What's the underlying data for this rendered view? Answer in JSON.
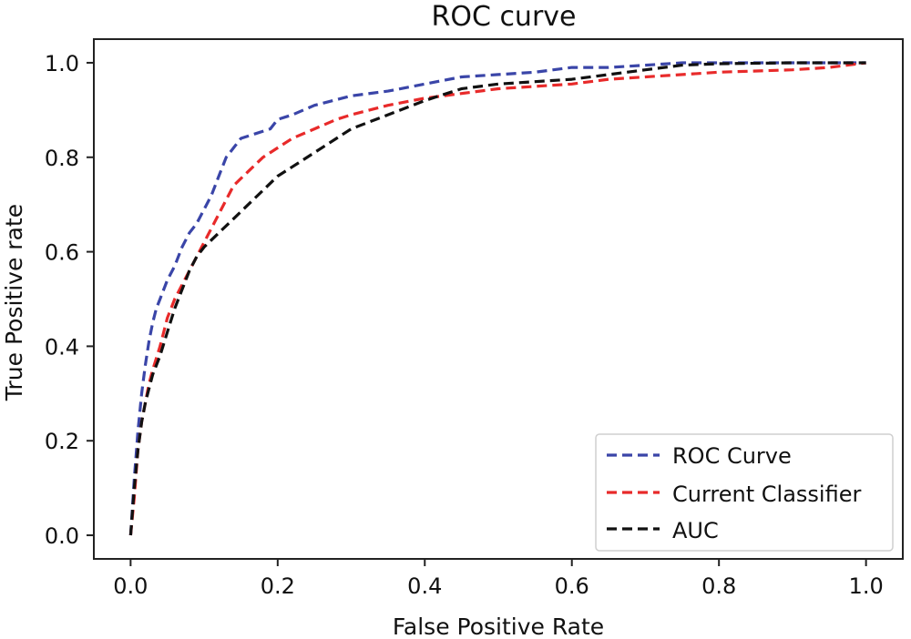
{
  "chart_data": {
    "type": "line",
    "title": "ROC curve",
    "xlabel": "False Positive Rate",
    "ylabel": "True Positive rate",
    "xlim": [
      -0.05,
      1.05
    ],
    "ylim": [
      -0.05,
      1.05
    ],
    "xticks": [
      0.0,
      0.2,
      0.4,
      0.6,
      0.8,
      1.0
    ],
    "xtick_labels": [
      "0.0",
      "0.2",
      "0.4",
      "0.6",
      "0.8",
      "1.0"
    ],
    "yticks": [
      0.0,
      0.2,
      0.4,
      0.6,
      0.8,
      1.0
    ],
    "ytick_labels": [
      "0.0",
      "0.2",
      "0.4",
      "0.6",
      "0.8",
      "1.0"
    ],
    "grid": false,
    "legend_position": "bottom-right",
    "series": [
      {
        "name": "ROC Curve",
        "color": "#3a45a8",
        "x": [
          0.0,
          0.005,
          0.01,
          0.015,
          0.02,
          0.025,
          0.03,
          0.035,
          0.04,
          0.05,
          0.06,
          0.07,
          0.08,
          0.09,
          0.1,
          0.11,
          0.12,
          0.13,
          0.14,
          0.15,
          0.17,
          0.19,
          0.2,
          0.22,
          0.25,
          0.3,
          0.35,
          0.4,
          0.45,
          0.5,
          0.55,
          0.6,
          0.65,
          0.7,
          0.75,
          0.8,
          0.9,
          1.0
        ],
        "y": [
          0.0,
          0.12,
          0.22,
          0.3,
          0.36,
          0.41,
          0.45,
          0.48,
          0.5,
          0.54,
          0.57,
          0.61,
          0.64,
          0.66,
          0.69,
          0.72,
          0.76,
          0.8,
          0.82,
          0.84,
          0.85,
          0.86,
          0.88,
          0.89,
          0.91,
          0.93,
          0.94,
          0.955,
          0.97,
          0.975,
          0.98,
          0.99,
          0.99,
          0.995,
          1.0,
          1.0,
          1.0,
          1.0
        ]
      },
      {
        "name": "Current Classifier",
        "color": "#e82a2a",
        "x": [
          0.0,
          0.005,
          0.01,
          0.015,
          0.02,
          0.025,
          0.03,
          0.04,
          0.05,
          0.06,
          0.07,
          0.08,
          0.09,
          0.1,
          0.12,
          0.14,
          0.16,
          0.18,
          0.2,
          0.22,
          0.25,
          0.28,
          0.3,
          0.35,
          0.4,
          0.45,
          0.5,
          0.55,
          0.6,
          0.65,
          0.7,
          0.8,
          0.9,
          0.95,
          1.0
        ],
        "y": [
          0.0,
          0.08,
          0.18,
          0.24,
          0.28,
          0.32,
          0.35,
          0.4,
          0.46,
          0.5,
          0.53,
          0.56,
          0.59,
          0.62,
          0.68,
          0.74,
          0.77,
          0.8,
          0.82,
          0.84,
          0.86,
          0.88,
          0.89,
          0.91,
          0.925,
          0.935,
          0.945,
          0.95,
          0.955,
          0.965,
          0.97,
          0.98,
          0.985,
          0.99,
          1.0
        ]
      },
      {
        "name": "AUC",
        "color": "#111111",
        "x": [
          0.0,
          0.005,
          0.01,
          0.015,
          0.02,
          0.025,
          0.03,
          0.04,
          0.05,
          0.06,
          0.07,
          0.08,
          0.09,
          0.1,
          0.12,
          0.14,
          0.16,
          0.18,
          0.2,
          0.22,
          0.25,
          0.28,
          0.3,
          0.35,
          0.4,
          0.45,
          0.5,
          0.55,
          0.6,
          0.65,
          0.7,
          0.75,
          0.8,
          0.9,
          1.0
        ],
        "y": [
          0.0,
          0.1,
          0.18,
          0.24,
          0.28,
          0.31,
          0.34,
          0.38,
          0.43,
          0.48,
          0.52,
          0.56,
          0.59,
          0.61,
          0.64,
          0.67,
          0.7,
          0.73,
          0.76,
          0.78,
          0.81,
          0.84,
          0.86,
          0.89,
          0.92,
          0.945,
          0.955,
          0.96,
          0.965,
          0.975,
          0.985,
          0.995,
          0.998,
          1.0,
          1.0
        ]
      }
    ]
  }
}
